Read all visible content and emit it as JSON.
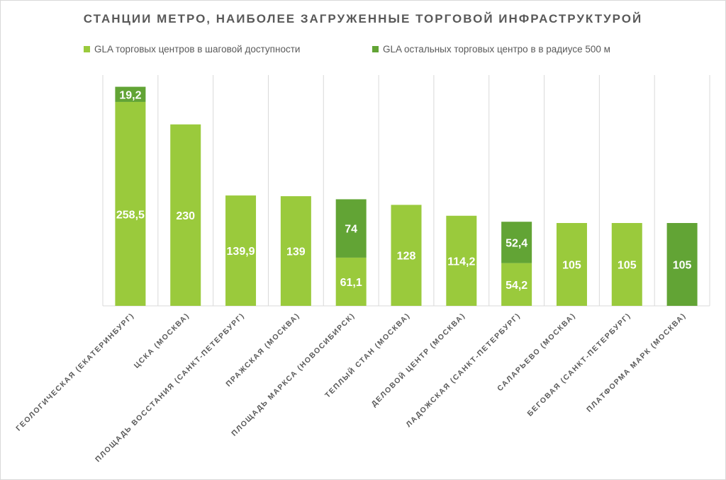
{
  "chart_data": {
    "type": "bar",
    "stacked": true,
    "title": "СТАНЦИИ МЕТРО, НАИБОЛЕЕ ЗАГРУЖЕННЫЕ ТОРГОВОЙ ИНФРАСТРУКТУРОЙ",
    "legend_position": "top",
    "categories": [
      "ГЕОЛОГИЧЕСКАЯ (ЕКАТЕРИНБУРГ)",
      "ЦСКА (МОСКВА)",
      "ПЛОЩАДЬ ВОССТАНИЯ (САНКТ-ПЕТЕРБУРГ)",
      "ПРАЖСКАЯ (МОСКВА)",
      "ПЛОЩАДЬ МАРКСА (НОВОСИБИРСК)",
      "ТЕПЛЫЙ СТАН (МОСКВА)",
      "ДЕЛОВОЙ ЦЕНТР (МОСКВА)",
      "ЛАДОЖСКАЯ (САНКТ-ПЕТЕРБУРГ)",
      "САЛАРЬЕВО (МОСКВА)",
      "БЕГОВАЯ (САНКТ-ПЕТЕРБУРГ)",
      "ПЛАТФОРМА МАРК (МОСКВА)"
    ],
    "series": [
      {
        "name": "GLA торговых центров в шаговой доступности",
        "color": "#9ACA3C",
        "values": [
          258.5,
          230,
          139.9,
          139,
          61.1,
          128,
          114.2,
          54.2,
          105,
          105,
          null
        ],
        "labels": [
          "258,5",
          "230",
          "139,9",
          "139",
          "61,1",
          "128",
          "114,2",
          "54,2",
          "105",
          "105",
          ""
        ]
      },
      {
        "name": "GLA остальных торговых центро в в радиусе 500 м",
        "color": "#62A435",
        "values": [
          19.2,
          null,
          null,
          null,
          74,
          null,
          null,
          52.4,
          null,
          null,
          105
        ],
        "labels": [
          "19,2",
          "",
          "",
          "",
          "74",
          "",
          "",
          "52,4",
          "",
          "",
          "105"
        ]
      }
    ],
    "ylim": [
      0,
      280
    ],
    "grid": "vertical category separators",
    "y_axis_shown": false
  }
}
